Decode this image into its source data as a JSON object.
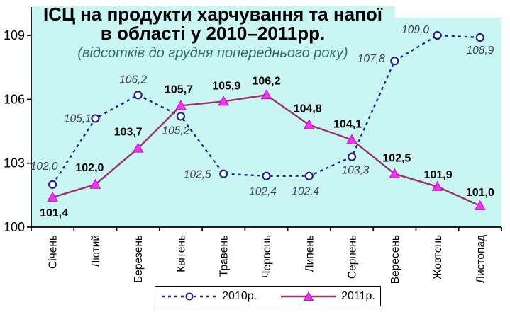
{
  "chart_data": {
    "type": "line",
    "title_line1": "ІСЦ на продукти харчування та напої",
    "title_line2": "в області у 2010–2011рр.",
    "subtitle": "(відсотків до грудня попереднього року)",
    "categories": [
      "Січень",
      "Лютий",
      "Березень",
      "Квітень",
      "Травень",
      "Червень",
      "Липень",
      "Серпень",
      "Вересень",
      "Жовтень",
      "Листопад"
    ],
    "series": [
      {
        "name": "2010р.",
        "values": [
          102.0,
          105.1,
          106.2,
          105.2,
          102.5,
          102.4,
          102.4,
          103.3,
          107.8,
          109.0,
          108.9
        ],
        "line_style": "dashed",
        "marker": "circle",
        "color": "#20208c",
        "marker_fill": "#ffffff",
        "marker_stroke": "#20208c",
        "label_color": "#3d3d5c",
        "label_style": "italic"
      },
      {
        "name": "2011р.",
        "values": [
          101.4,
          102.0,
          103.7,
          105.7,
          105.9,
          106.2,
          104.8,
          104.1,
          102.5,
          101.9,
          101.0
        ],
        "line_style": "solid",
        "marker": "triangle",
        "color": "#993366",
        "marker_fill": "#fa30fa",
        "marker_stroke": "#b912b9",
        "label_color": "#000000",
        "label_style": "bold"
      }
    ],
    "y_ticks": [
      100,
      103,
      106,
      109
    ],
    "ylim": [
      100,
      109
    ],
    "grid": false,
    "legend_position": "bottom",
    "plot_bg_color": "#c9f5f3",
    "axis_color": "#000000",
    "decimal_separator": ","
  }
}
